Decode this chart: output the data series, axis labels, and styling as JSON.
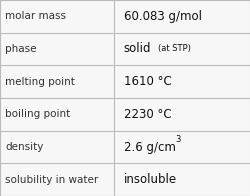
{
  "rows": [
    {
      "label": "molar mass",
      "value": "60.083 g/mol",
      "type": "plain"
    },
    {
      "label": "phase",
      "value": "solid",
      "type": "phase",
      "sub": "(at STP)"
    },
    {
      "label": "melting point",
      "value": "1610 °C",
      "type": "plain"
    },
    {
      "label": "boiling point",
      "value": "2230 °C",
      "type": "plain"
    },
    {
      "label": "density",
      "value": "2.6 g/cm",
      "type": "super",
      "sup": "3"
    },
    {
      "label": "solubility in water",
      "value": "insoluble",
      "type": "plain"
    }
  ],
  "bg_color": "#f7f7f7",
  "border_color": "#bbbbbb",
  "divider_color": "#bbbbbb",
  "label_color": "#333333",
  "value_color": "#111111",
  "label_fontsize": 7.5,
  "value_fontsize": 8.5,
  "sub_fontsize": 6.0,
  "sup_fontsize": 6.0,
  "col_split": 0.455
}
